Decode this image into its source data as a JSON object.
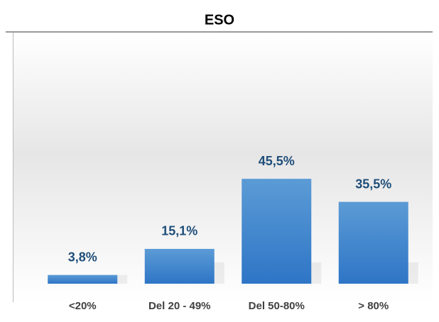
{
  "chart_data": {
    "type": "bar",
    "title": "ESO",
    "categories": [
      "<20%",
      "Del 20 - 49%",
      "Del 50-80%",
      "> 80%"
    ],
    "values": [
      3.8,
      15.1,
      45.5,
      35.5
    ],
    "value_labels": [
      "3,8%",
      "15,1%",
      "45,5%",
      "35,5%"
    ],
    "color": "#4a8fd4"
  }
}
